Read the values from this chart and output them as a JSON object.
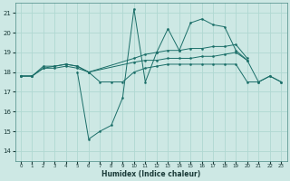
{
  "bg_color": "#cde8e4",
  "grid_color": "#b0d8d2",
  "line_color": "#1a6e68",
  "xlabel": "Humidex (Indice chaleur)",
  "xlim": [
    -0.5,
    23.5
  ],
  "ylim": [
    13.5,
    21.5
  ],
  "yticks": [
    14,
    15,
    16,
    17,
    18,
    19,
    20,
    21
  ],
  "xticks": [
    0,
    1,
    2,
    3,
    4,
    5,
    6,
    7,
    8,
    9,
    10,
    11,
    12,
    13,
    14,
    15,
    16,
    17,
    18,
    19,
    20,
    21,
    22,
    23
  ],
  "series": [
    {
      "x": [
        0,
        1,
        2,
        3,
        4,
        5,
        6,
        7,
        8,
        9,
        10,
        11,
        12,
        13,
        14,
        15,
        16,
        17,
        18,
        19,
        20,
        21,
        22,
        23
      ],
      "y": [
        17.8,
        17.8,
        18.2,
        18.2,
        18.3,
        18.2,
        18.0,
        17.5,
        17.5,
        17.5,
        18.0,
        18.2,
        18.3,
        18.4,
        18.4,
        18.4,
        18.4,
        18.4,
        18.4,
        18.4,
        17.5,
        17.5,
        17.8,
        17.5
      ]
    },
    {
      "x": [
        0,
        1,
        2,
        3,
        4,
        5,
        6,
        10,
        11,
        12,
        13,
        14,
        15,
        16,
        17,
        18,
        19,
        20
      ],
      "y": [
        17.8,
        17.8,
        18.2,
        18.3,
        18.4,
        18.3,
        18.0,
        18.5,
        18.6,
        18.6,
        18.7,
        18.7,
        18.7,
        18.8,
        18.8,
        18.9,
        19.0,
        18.6
      ]
    },
    {
      "x": [
        0,
        1,
        2,
        3,
        4,
        5,
        6,
        10,
        11,
        12,
        13,
        14,
        15,
        16,
        17,
        18,
        19,
        20
      ],
      "y": [
        17.8,
        17.8,
        18.3,
        18.3,
        18.4,
        18.3,
        18.0,
        18.7,
        18.9,
        19.0,
        19.1,
        19.1,
        19.2,
        19.2,
        19.3,
        19.3,
        19.4,
        18.7
      ]
    },
    {
      "x": [
        5,
        6,
        7,
        8,
        9,
        10,
        11,
        12,
        13,
        14,
        15,
        16,
        17,
        18,
        19,
        20,
        21,
        22,
        23
      ],
      "y": [
        18.0,
        14.6,
        15.0,
        15.3,
        16.7,
        21.2,
        17.5,
        19.0,
        20.2,
        19.1,
        20.5,
        20.7,
        20.4,
        20.3,
        19.1,
        18.6,
        17.5,
        17.8,
        17.5
      ]
    }
  ]
}
